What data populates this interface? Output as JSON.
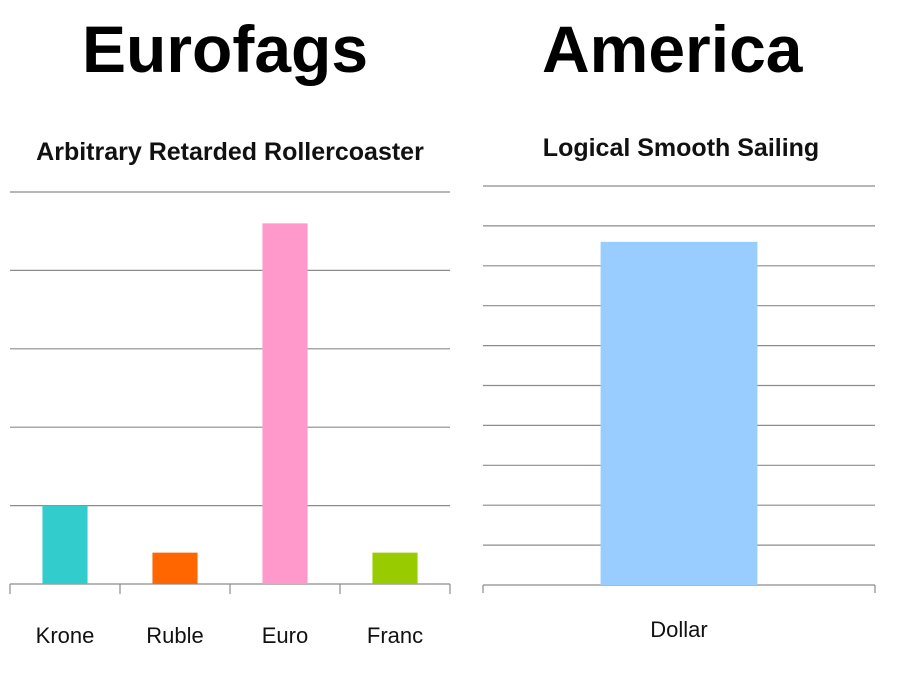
{
  "headings": {
    "left": "Eurofags",
    "right": "America"
  },
  "chart_data": [
    {
      "type": "bar",
      "title": "Arbitrary Retarded Rollercoaster",
      "categories": [
        "Krone",
        "Ruble",
        "Euro",
        "Franc"
      ],
      "values": [
        1,
        0.4,
        4.6,
        0.4
      ],
      "colors": [
        "#33cccc",
        "#ff6600",
        "#ff99cc",
        "#99cc00"
      ],
      "ylim": [
        0,
        5
      ],
      "grid": true,
      "xlabel": "",
      "ylabel": ""
    },
    {
      "type": "bar",
      "title": "Logical Smooth Sailing",
      "categories": [
        "Dollar"
      ],
      "values": [
        8.6
      ],
      "colors": [
        "#99ccff"
      ],
      "ylim": [
        0,
        10
      ],
      "grid": true,
      "xlabel": "",
      "ylabel": ""
    }
  ]
}
